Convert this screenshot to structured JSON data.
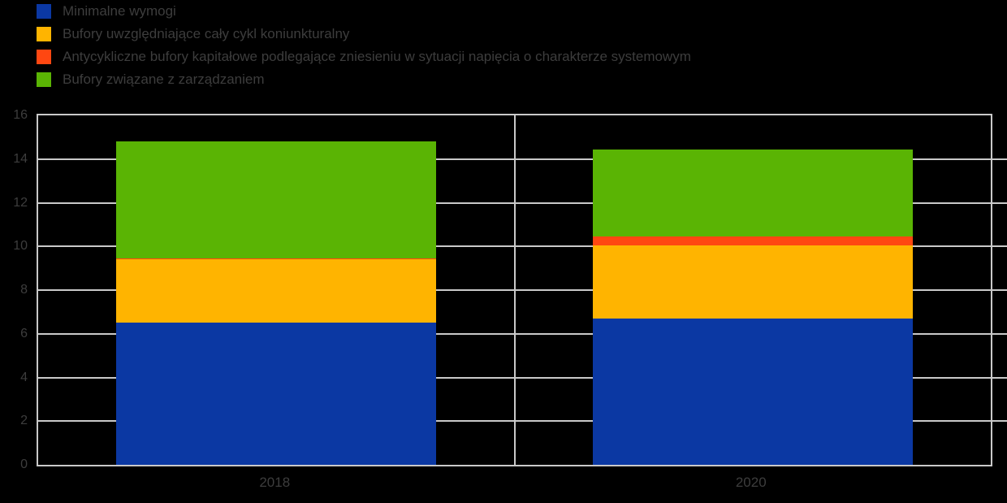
{
  "canvas": {
    "background_color": "#000000",
    "text_color": "#3d3d3d",
    "gridline_color": "#c9c9c9"
  },
  "chart_data": {
    "type": "bar",
    "stacked": true,
    "title": "",
    "xlabel": "",
    "ylabel": "",
    "categories": [
      "2018",
      "2020"
    ],
    "series": [
      {
        "name": "Minimalne wymogi",
        "color": "#0b38a3",
        "values": [
          6.5,
          6.7
        ]
      },
      {
        "name": "Bufory uwzględniające cały cykl koniunkturalny",
        "color": "#ffb400",
        "values": [
          2.9,
          3.35
        ]
      },
      {
        "name": "Antycykliczne bufory kapitałowe podlegające zniesieniu w sytuacji napięcia o charakterze systemowym",
        "color": "#ff4711",
        "values": [
          0.05,
          0.4
        ]
      },
      {
        "name": "Bufory związane z zarządzaniem",
        "color": "#5ab404",
        "values": [
          5.35,
          4.0
        ]
      }
    ],
    "totals": [
      14.8,
      14.45
    ],
    "ylim": [
      0,
      16
    ],
    "yticks": [
      0,
      2,
      4,
      6,
      8,
      10,
      12,
      14,
      16
    ],
    "grid": "horizontal",
    "legend_position": "top-left",
    "plot_background": "#000000"
  }
}
